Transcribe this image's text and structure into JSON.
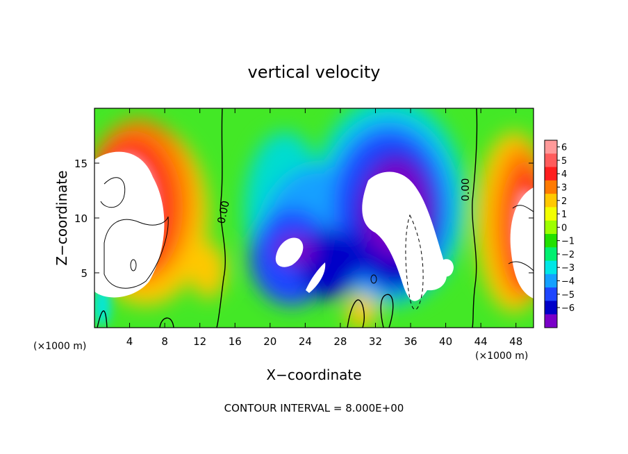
{
  "chart_data": {
    "type": "heatmap",
    "title": "vertical velocity",
    "xlabel": "X−coordinate",
    "ylabel": "Z−coordinate",
    "x_unit_left": "(×1000 m)",
    "x_unit_right": "(×1000 m)",
    "xlim": [
      0,
      50
    ],
    "ylim": [
      0,
      20
    ],
    "x_ticks": [
      "4",
      "8",
      "12",
      "16",
      "20",
      "24",
      "28",
      "32",
      "36",
      "40",
      "44",
      "48"
    ],
    "y_ticks": [
      "5",
      "10",
      "15"
    ],
    "colorbar": {
      "levels": [
        "6",
        "5",
        "4",
        "3",
        "2",
        "1",
        "0",
        "−1",
        "−2",
        "−3",
        "−4",
        "−5",
        "−6"
      ],
      "colors": [
        "#ff9a9a",
        "#ff5c5c",
        "#ff1e1e",
        "#ff7a00",
        "#ffc800",
        "#f2ff00",
        "#9dff00",
        "#22e000",
        "#00f070",
        "#00e6e6",
        "#14a0ff",
        "#1e46ff",
        "#0000c8",
        "#7a00c8"
      ],
      "overflow_color": "#ffffff"
    },
    "contour_label": "0.00",
    "contour_interval_text": "CONTOUR INTERVAL = 8.000E+00"
  }
}
